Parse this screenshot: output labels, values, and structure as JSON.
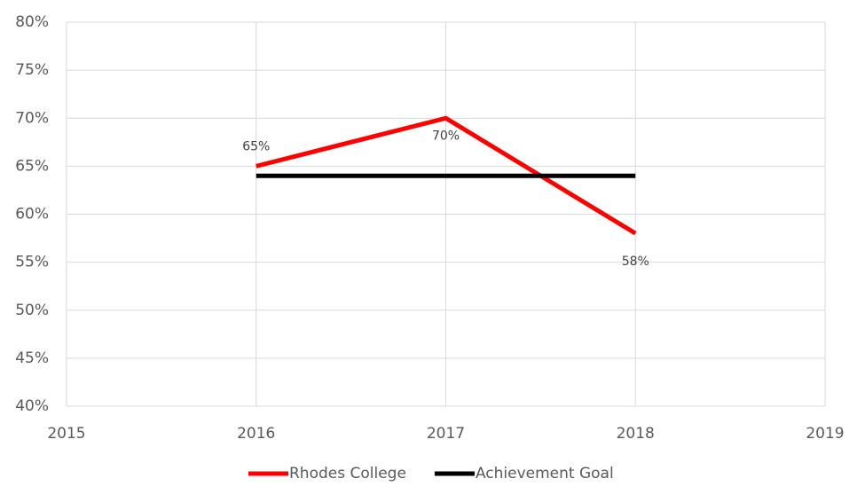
{
  "chart_data": {
    "type": "line",
    "x": [
      2016,
      2017,
      2018
    ],
    "series": [
      {
        "name": "Rhodes College",
        "color": "#ff0000",
        "values": [
          65,
          70,
          58
        ],
        "value_labels": [
          "65%",
          "70%",
          "58%"
        ]
      },
      {
        "name": "Achievement Goal",
        "color": "#000000",
        "values": [
          64,
          64,
          64
        ]
      }
    ],
    "xlim": [
      2015,
      2019
    ],
    "xticks": [
      2015,
      2016,
      2017,
      2018,
      2019
    ],
    "ylim": [
      40,
      80
    ],
    "yticks": [
      {
        "value": 40,
        "label": "40%"
      },
      {
        "value": 45,
        "label": "45%"
      },
      {
        "value": 50,
        "label": "50%"
      },
      {
        "value": 55,
        "label": "55%"
      },
      {
        "value": 60,
        "label": "60%"
      },
      {
        "value": 65,
        "label": "65%"
      },
      {
        "value": 70,
        "label": "70%"
      },
      {
        "value": 75,
        "label": "75%"
      },
      {
        "value": 80,
        "label": "80%"
      }
    ],
    "grid": true,
    "legend": "bottom"
  }
}
